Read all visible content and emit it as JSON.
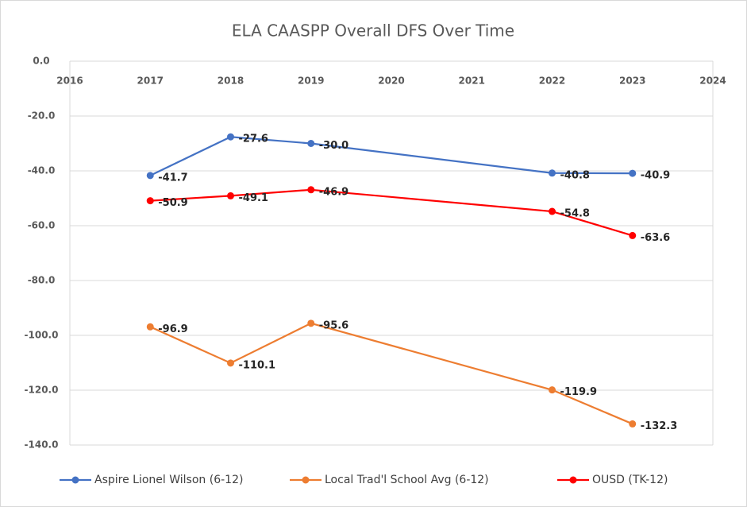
{
  "chart_data": {
    "type": "line",
    "title": "ELA CAASPP Overall DFS Over Time",
    "x": [
      2017,
      2018,
      2019,
      2022,
      2023
    ],
    "xlim": [
      2016,
      2024
    ],
    "xticks": [
      2016,
      2017,
      2018,
      2019,
      2020,
      2021,
      2022,
      2023,
      2024
    ],
    "ylim": [
      -140,
      0
    ],
    "yticks": [
      {
        "value": 0,
        "label": "0.0"
      },
      {
        "value": -20,
        "label": "-20.0"
      },
      {
        "value": -40,
        "label": "-40.0"
      },
      {
        "value": -60,
        "label": "-60.0"
      },
      {
        "value": -80,
        "label": "-80.0"
      },
      {
        "value": -100,
        "label": "-100.0"
      },
      {
        "value": -120,
        "label": "-120.0"
      },
      {
        "value": -140,
        "label": "-140.0"
      }
    ],
    "grid": true,
    "legend": "bottom",
    "series": [
      {
        "name": "Aspire Lionel Wilson (6-12)",
        "color": "#4472c4",
        "values": [
          -41.7,
          -27.6,
          -30,
          -40.8,
          -40.9
        ],
        "value_labels": [
          "-41.7",
          "-27.6",
          "-30.0",
          "-40.8",
          "-40.9"
        ]
      },
      {
        "name": "Local Trad'l School Avg (6-12)",
        "color": "#ed7d31",
        "values": [
          -96.9,
          -110.1,
          -95.6,
          -119.9,
          -132.3
        ]
      },
      {
        "name": "OUSD (TK-12)",
        "color": "#ff0000",
        "values": [
          -50.9,
          -49.1,
          -46.9,
          -54.8,
          -63.6
        ]
      }
    ]
  }
}
